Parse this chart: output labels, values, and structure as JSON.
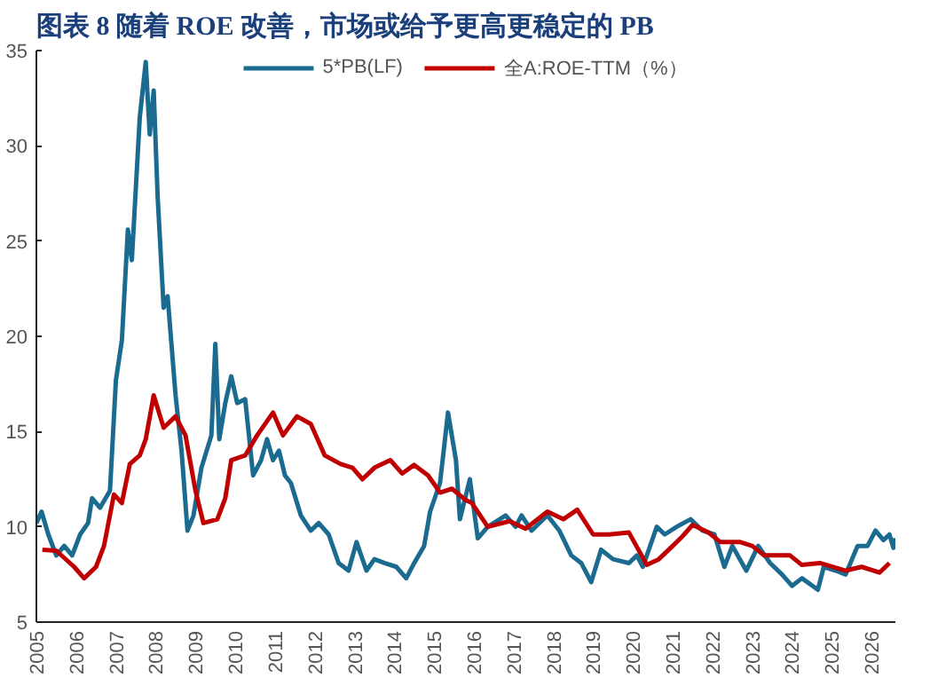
{
  "chart_data": {
    "type": "line",
    "title": "图表 8   随着 ROE 改善，市场或给予更高更稳定的 PB",
    "xlim": [
      2005,
      2026.6
    ],
    "xticks": [
      2005,
      2006,
      2007,
      2008,
      2009,
      2010,
      2011,
      2012,
      2013,
      2014,
      2015,
      2016,
      2017,
      2018,
      2019,
      2020,
      2021,
      2022,
      2023,
      2024,
      2025,
      2026
    ],
    "ylim": [
      5,
      35
    ],
    "yticks": [
      5,
      10,
      15,
      20,
      25,
      30,
      35
    ],
    "grid": false,
    "legend": "top",
    "line_style": "solid",
    "marker": "none",
    "series": [
      {
        "name": "5*PB(LF)",
        "color": "#1b6a8f",
        "x": [
          2005.0,
          2005.13,
          2005.3,
          2005.5,
          2005.7,
          2005.9,
          2006.1,
          2006.3,
          2006.4,
          2006.6,
          2006.85,
          2007.0,
          2007.15,
          2007.3,
          2007.4,
          2007.6,
          2007.75,
          2007.85,
          2007.95,
          2008.05,
          2008.2,
          2008.3,
          2008.5,
          2008.65,
          2008.8,
          2008.95,
          2009.15,
          2009.4,
          2009.5,
          2009.6,
          2009.75,
          2009.9,
          2010.05,
          2010.25,
          2010.45,
          2010.65,
          2010.8,
          2010.95,
          2011.1,
          2011.25,
          2011.4,
          2011.65,
          2011.9,
          2012.1,
          2012.35,
          2012.6,
          2012.85,
          2013.05,
          2013.3,
          2013.5,
          2013.75,
          2014.05,
          2014.3,
          2014.5,
          2014.75,
          2014.9,
          2015.15,
          2015.35,
          2015.55,
          2015.65,
          2015.9,
          2016.1,
          2016.35,
          2016.8,
          2017.05,
          2017.2,
          2017.45,
          2017.85,
          2018.15,
          2018.45,
          2018.7,
          2018.95,
          2019.2,
          2019.5,
          2019.9,
          2020.1,
          2020.25,
          2020.6,
          2020.8,
          2021.1,
          2021.45,
          2021.75,
          2022.05,
          2022.3,
          2022.5,
          2022.85,
          2023.15,
          2023.45,
          2023.75,
          2024.0,
          2024.25,
          2024.65,
          2024.8,
          2025.1,
          2025.35,
          2025.65,
          2025.9,
          2026.1,
          2026.3,
          2026.45,
          2026.55,
          2026.6
        ],
        "values": [
          10.2,
          10.8,
          9.6,
          8.5,
          9.0,
          8.5,
          9.6,
          10.2,
          11.5,
          11.0,
          11.9,
          17.7,
          19.8,
          25.6,
          24.0,
          31.5,
          34.4,
          30.6,
          32.9,
          27.3,
          21.5,
          22.1,
          16.9,
          14.0,
          9.8,
          10.6,
          13.1,
          14.8,
          19.6,
          14.6,
          16.5,
          17.9,
          16.5,
          16.7,
          12.7,
          13.5,
          14.6,
          13.5,
          14.0,
          12.7,
          12.3,
          10.6,
          9.8,
          10.2,
          9.6,
          8.1,
          7.7,
          9.2,
          7.7,
          8.3,
          8.1,
          7.9,
          7.3,
          8.1,
          9.0,
          10.8,
          12.3,
          16.0,
          13.5,
          10.4,
          12.5,
          9.4,
          10.0,
          10.6,
          10.0,
          10.6,
          9.8,
          10.6,
          9.8,
          8.5,
          8.1,
          7.1,
          8.8,
          8.3,
          8.1,
          8.5,
          7.9,
          10.0,
          9.6,
          10.0,
          10.4,
          9.8,
          9.6,
          7.9,
          9.0,
          7.7,
          9.0,
          8.1,
          7.5,
          6.9,
          7.3,
          6.7,
          7.9,
          7.7,
          7.5,
          9.0,
          9.0,
          9.8,
          9.3,
          9.6,
          8.9,
          9.4
        ]
      },
      {
        "name": "全A:ROE-TTM（%）",
        "color": "#c00000",
        "x": [
          2005.15,
          2005.5,
          2005.95,
          2006.2,
          2006.5,
          2006.7,
          2006.95,
          2007.15,
          2007.35,
          2007.6,
          2007.75,
          2007.95,
          2008.2,
          2008.5,
          2008.75,
          2009.0,
          2009.2,
          2009.55,
          2009.75,
          2009.9,
          2010.25,
          2010.55,
          2010.95,
          2011.2,
          2011.55,
          2011.9,
          2012.25,
          2012.65,
          2012.95,
          2013.2,
          2013.5,
          2013.9,
          2014.2,
          2014.5,
          2014.85,
          2015.15,
          2015.45,
          2015.8,
          2015.95,
          2016.35,
          2016.9,
          2017.3,
          2017.85,
          2018.25,
          2018.6,
          2019.0,
          2019.4,
          2019.9,
          2020.35,
          2020.65,
          2021.2,
          2021.5,
          2021.9,
          2022.2,
          2022.7,
          2023.0,
          2023.3,
          2023.95,
          2024.25,
          2024.7,
          2025.35,
          2025.75,
          2026.2,
          2026.45
        ],
        "values": [
          8.8,
          8.75,
          7.9,
          7.3,
          7.9,
          9.0,
          11.7,
          11.25,
          13.3,
          13.75,
          14.6,
          16.9,
          15.2,
          15.8,
          14.8,
          11.9,
          10.2,
          10.4,
          11.5,
          13.5,
          13.75,
          14.8,
          16.0,
          14.8,
          15.8,
          15.4,
          13.75,
          13.3,
          13.1,
          12.5,
          13.1,
          13.5,
          12.8,
          13.25,
          12.7,
          11.8,
          12.0,
          11.4,
          11.25,
          10.0,
          10.3,
          9.9,
          10.8,
          10.4,
          10.9,
          9.6,
          9.6,
          9.7,
          8.0,
          8.3,
          9.4,
          10.1,
          9.7,
          9.2,
          9.2,
          9.0,
          8.5,
          8.5,
          8.0,
          8.1,
          7.7,
          7.9,
          7.6,
          8.1
        ]
      }
    ]
  }
}
